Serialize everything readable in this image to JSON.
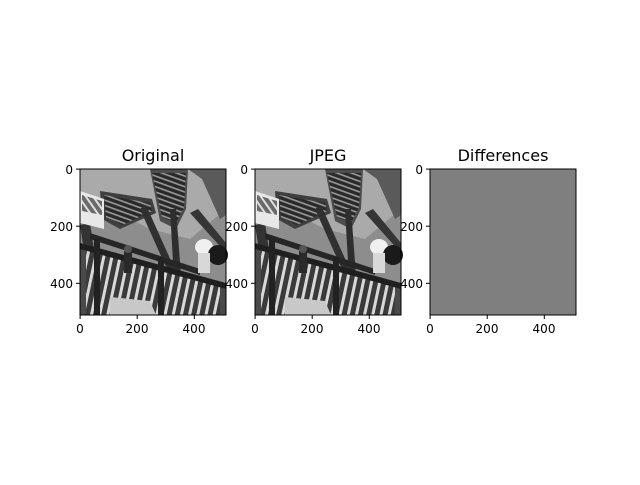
{
  "figure": {
    "background": "#ffffff"
  },
  "chart_data": [
    {
      "type": "image",
      "title": "Original",
      "colormap": "gray",
      "content": "grayscale photo of an outdoor staircase with railings",
      "xlim": [
        0,
        512
      ],
      "ylim": [
        512,
        0
      ],
      "x_ticks": [
        0,
        200,
        400
      ],
      "y_ticks": [
        0,
        200,
        400
      ]
    },
    {
      "type": "image",
      "title": "JPEG",
      "colormap": "gray",
      "content": "JPEG-compressed version of the staircase photo",
      "xlim": [
        0,
        512
      ],
      "ylim": [
        512,
        0
      ],
      "x_ticks": [
        0,
        200,
        400
      ],
      "y_ticks": [
        0,
        200,
        400
      ]
    },
    {
      "type": "image",
      "title": "Differences",
      "colormap": "gray",
      "content": "near-uniform mid-gray difference image",
      "fill_color": "#7f7f7f",
      "xlim": [
        0,
        512
      ],
      "ylim": [
        512,
        0
      ],
      "x_ticks": [
        0,
        200,
        400
      ],
      "y_ticks": [
        0,
        200,
        400
      ]
    }
  ]
}
